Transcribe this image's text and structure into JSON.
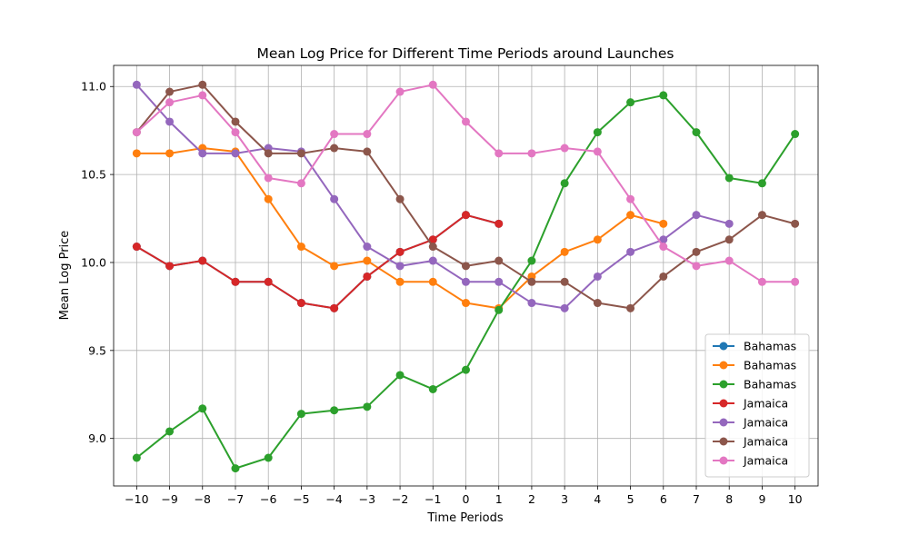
{
  "chart_data": {
    "type": "line",
    "title": "Mean Log Price for Different Time Periods around Launches",
    "xlabel": "Time Periods",
    "ylabel": "Mean Log Price",
    "xlim": [
      -10.7,
      10.7
    ],
    "ylim": [
      8.73,
      11.12
    ],
    "xticks": [
      -10,
      -9,
      -8,
      -7,
      -6,
      -5,
      -4,
      -3,
      -2,
      -1,
      0,
      1,
      2,
      3,
      4,
      5,
      6,
      7,
      8,
      9,
      10
    ],
    "yticks": [
      9.0,
      9.5,
      10.0,
      10.5,
      11.0
    ],
    "grid": true,
    "legend_position": "lower-right",
    "series": [
      {
        "name": "Bahamas",
        "color": "#1f77b4",
        "x": [
          -10,
          -9,
          -8,
          -7,
          -6,
          -5,
          -4,
          -3,
          -2,
          -1,
          0,
          1
        ],
        "y": [
          10.09,
          9.98,
          10.01,
          9.89,
          9.89,
          9.77,
          9.74,
          9.92,
          10.06,
          10.13,
          10.27,
          10.22
        ]
      },
      {
        "name": "Bahamas",
        "color": "#ff7f0e",
        "x": [
          -10,
          -9,
          -8,
          -7,
          -6,
          -5,
          -4,
          -3,
          -2,
          -1,
          0,
          1,
          2,
          3,
          4,
          5,
          6
        ],
        "y": [
          10.62,
          10.62,
          10.65,
          10.63,
          10.36,
          10.09,
          9.98,
          10.01,
          9.89,
          9.89,
          9.77,
          9.74,
          9.92,
          10.06,
          10.13,
          10.27,
          10.22
        ]
      },
      {
        "name": "Bahamas",
        "color": "#2ca02c",
        "x": [
          -10,
          -9,
          -8,
          -7,
          -6,
          -5,
          -4,
          -3,
          -2,
          -1,
          0,
          1,
          2,
          3,
          4,
          5,
          6,
          7,
          8,
          9,
          10
        ],
        "y": [
          8.89,
          9.04,
          9.17,
          8.83,
          8.89,
          9.14,
          9.16,
          9.18,
          9.36,
          9.28,
          9.39,
          9.73,
          10.01,
          10.45,
          10.74,
          10.91,
          10.95,
          10.74,
          10.48,
          10.45,
          10.73
        ]
      },
      {
        "name": "Jamaica",
        "color": "#d62728",
        "x": [
          -10,
          -9,
          -8,
          -7,
          -6,
          -5,
          -4,
          -3,
          -2,
          -1,
          0,
          1
        ],
        "y": [
          10.09,
          9.98,
          10.01,
          9.89,
          9.89,
          9.77,
          9.74,
          9.92,
          10.06,
          10.13,
          10.27,
          10.22
        ]
      },
      {
        "name": "Jamaica",
        "color": "#9467bd",
        "x": [
          -10,
          -9,
          -8,
          -7,
          -6,
          -5,
          -4,
          -3,
          -2,
          -1,
          0,
          1,
          2,
          3,
          4,
          5,
          6,
          7,
          8
        ],
        "y": [
          11.01,
          10.8,
          10.62,
          10.62,
          10.65,
          10.63,
          10.36,
          10.09,
          9.98,
          10.01,
          9.89,
          9.89,
          9.77,
          9.74,
          9.92,
          10.06,
          10.13,
          10.27,
          10.22
        ]
      },
      {
        "name": "Jamaica",
        "color": "#8c564b",
        "x": [
          -10,
          -9,
          -8,
          -7,
          -6,
          -5,
          -4,
          -3,
          -2,
          -1,
          0,
          1,
          2,
          3,
          4,
          5,
          6,
          7,
          8,
          9,
          10
        ],
        "y": [
          10.74,
          10.97,
          11.01,
          10.8,
          10.62,
          10.62,
          10.65,
          10.63,
          10.36,
          10.09,
          9.98,
          10.01,
          9.89,
          9.89,
          9.77,
          9.74,
          9.92,
          10.06,
          10.13,
          10.27,
          10.22
        ]
      },
      {
        "name": "Jamaica",
        "color": "#e377c2",
        "x": [
          -10,
          -9,
          -8,
          -7,
          -6,
          -5,
          -4,
          -3,
          -2,
          -1,
          0,
          1,
          2,
          3,
          4,
          5,
          6,
          7,
          8,
          9,
          10
        ],
        "y": [
          10.74,
          10.91,
          10.95,
          10.74,
          10.48,
          10.45,
          10.73,
          10.73,
          10.97,
          11.01,
          10.8,
          10.62,
          10.62,
          10.65,
          10.63,
          10.36,
          10.09,
          9.98,
          10.01,
          9.89,
          9.89
        ]
      }
    ]
  }
}
